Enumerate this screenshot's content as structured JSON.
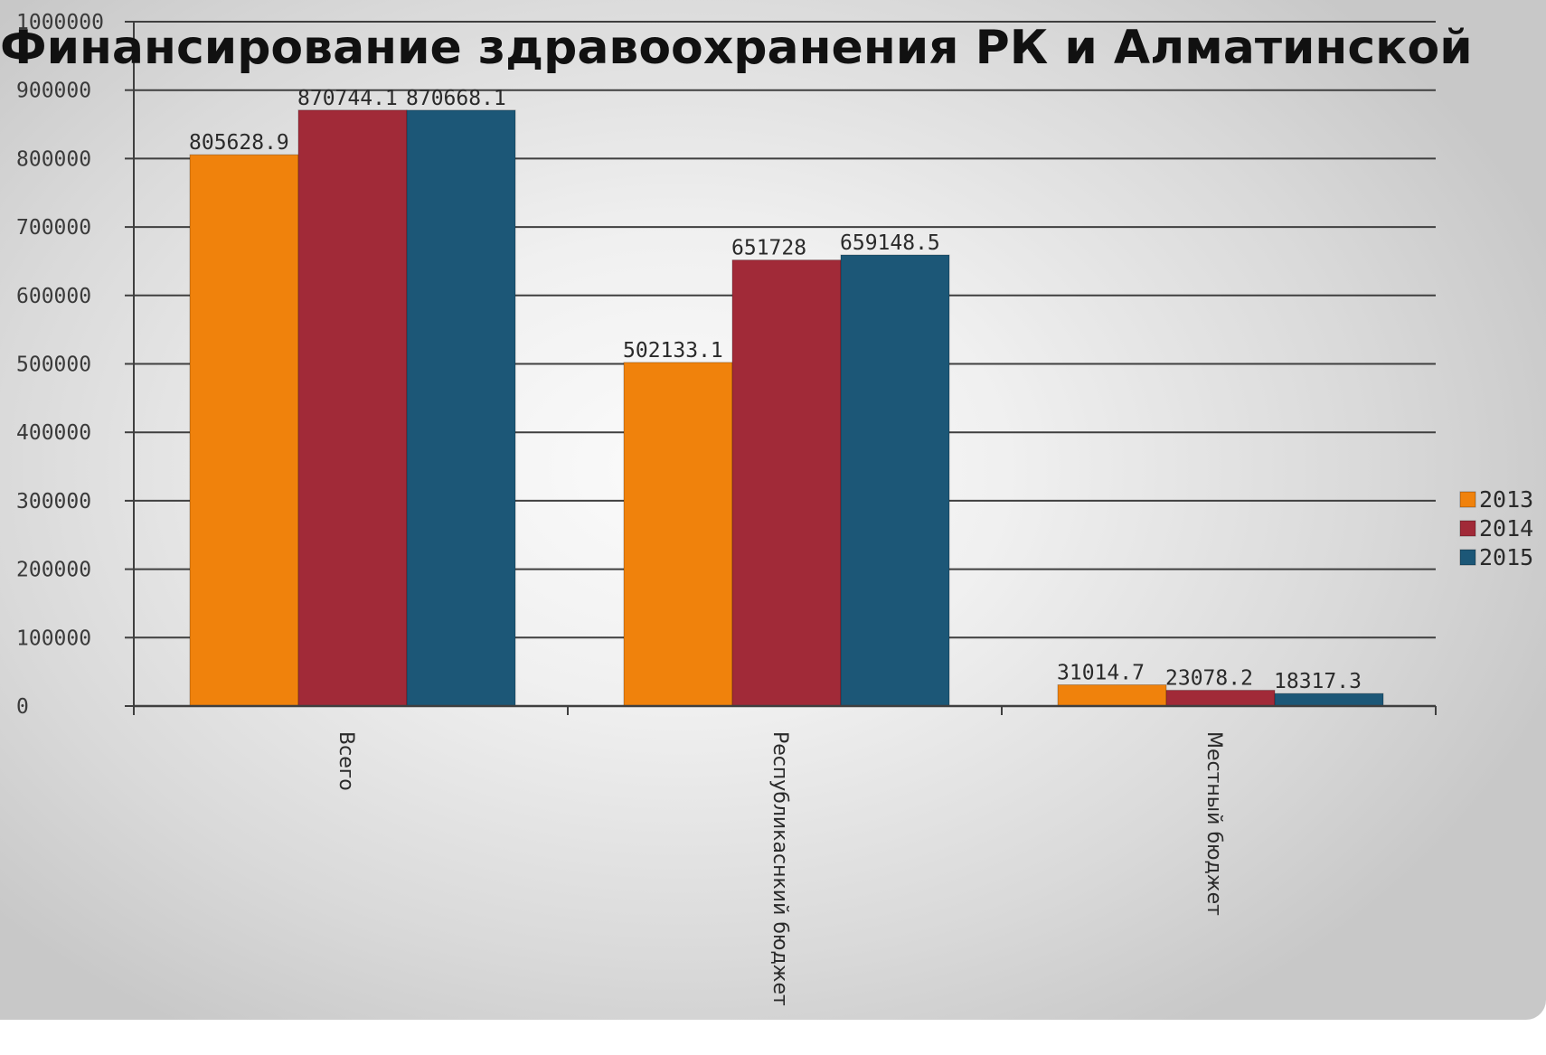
{
  "chart_data": {
    "type": "bar",
    "title": "Финансирование здравоохранения РК  и Алматинской",
    "xlabel": "",
    "ylabel": "",
    "ylim": [
      0,
      1000000
    ],
    "yticks": [
      "0",
      "100000",
      "200000",
      "300000",
      "400000",
      "500000",
      "600000",
      "700000",
      "800000",
      "900000",
      "1000000"
    ],
    "grid": true,
    "legend_position": "right",
    "categories": [
      "Всего",
      "Республикаснкий бюджет",
      "Местный бюджет"
    ],
    "series": [
      {
        "name": "2013",
        "color": "#f0820c",
        "values": [
          805628.9,
          502133.1,
          31014.7
        ],
        "labels": [
          "805628.9",
          "502133.1",
          "31014.7"
        ]
      },
      {
        "name": "2014",
        "color": "#a12a38",
        "values": [
          870744.1,
          651728,
          23078.2
        ],
        "labels": [
          "870744.1",
          "651728",
          "23078.2"
        ]
      },
      {
        "name": "2015",
        "color": "#1c5777",
        "values": [
          870668.1,
          659148.5,
          18317.3
        ],
        "labels": [
          "870668.1",
          "659148.5",
          "18317.3"
        ]
      }
    ]
  }
}
